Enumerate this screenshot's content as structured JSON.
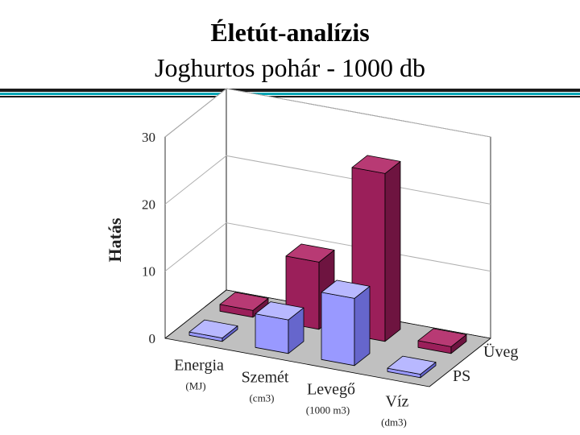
{
  "slide": {
    "title": "Életút-analízis",
    "subtitle": "Joghurtos pohár - 1000 db"
  },
  "colors": {
    "uveg_front": "#9b1f5a",
    "uveg_side": "#6e1440",
    "uveg_top": "#b83a74",
    "ps_front": "#9999ff",
    "ps_side": "#6666cc",
    "ps_top": "#b8b8ff",
    "floor": "#c0c0c0",
    "wall": "#ffffff",
    "grid": "#b0b0b0",
    "divider_dark": "#1a1a1a",
    "divider_accent": "#00a6b5"
  },
  "chart_data": {
    "type": "bar",
    "title": "",
    "ylabel": "Hatás",
    "ylim": [
      0,
      30
    ],
    "yticks": [
      "0",
      "10",
      "20",
      "30"
    ],
    "categories": [
      "Energia",
      "Szemét",
      "Levegő",
      "Víz"
    ],
    "category_units": [
      "(MJ)",
      "(cm3)",
      "(1000 m3)",
      "(dm3)"
    ],
    "series": [
      {
        "name": "Üveg",
        "values": [
          1.0,
          10.0,
          25.0,
          1.0
        ]
      },
      {
        "name": "PS",
        "values": [
          0.5,
          5.0,
          10.0,
          0.5
        ]
      }
    ]
  }
}
